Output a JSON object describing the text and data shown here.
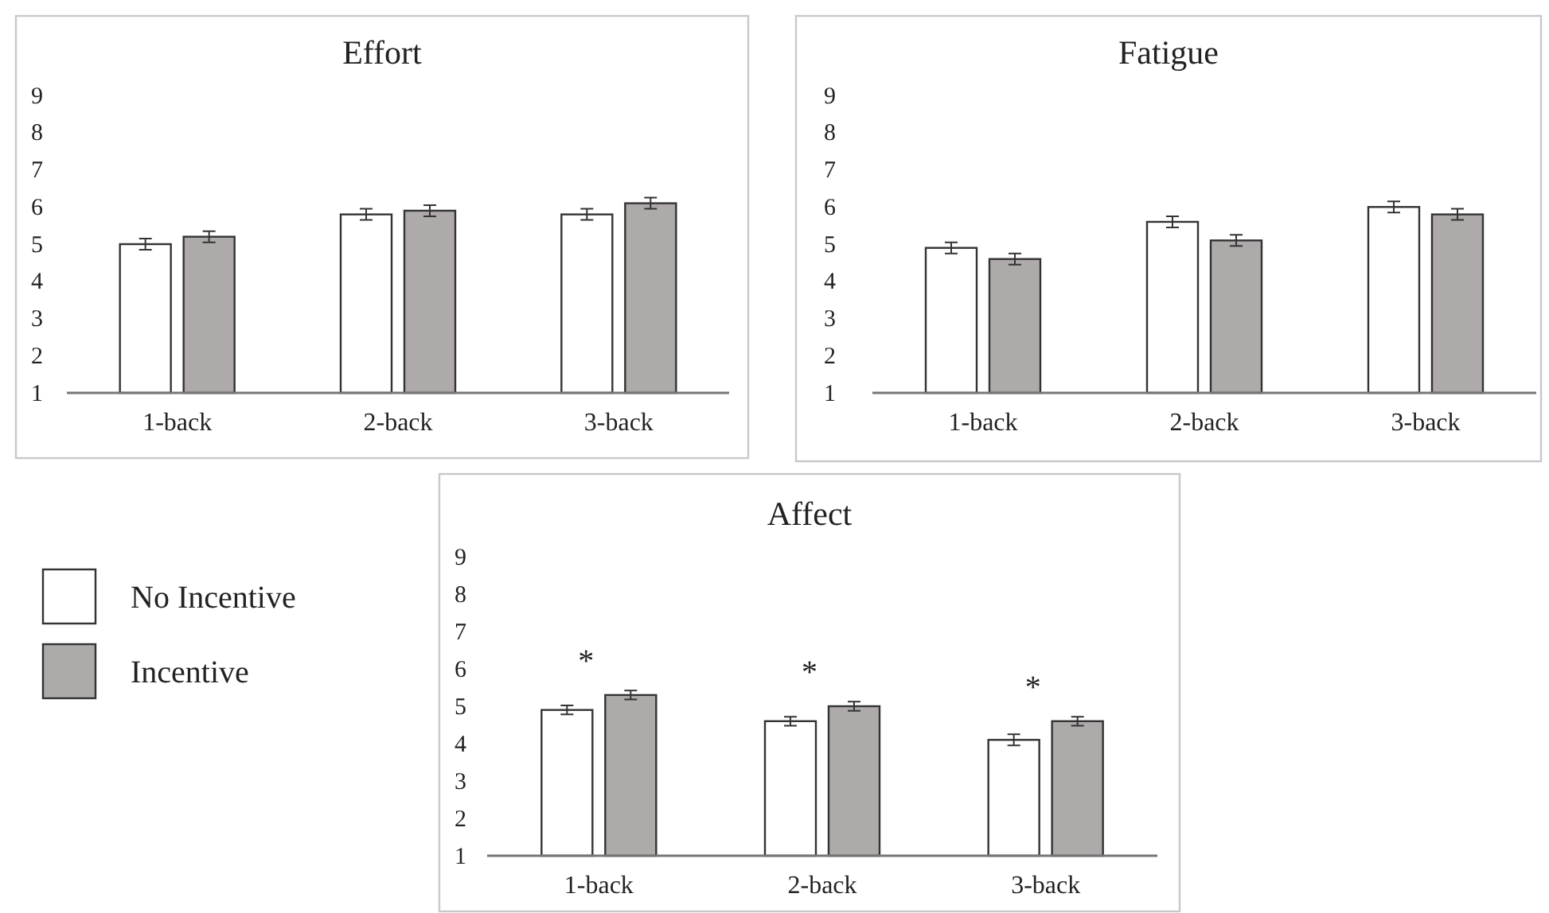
{
  "chart_data": [
    {
      "type": "bar",
      "title": "Effort",
      "categories": [
        "1-back",
        "2-back",
        "3-back"
      ],
      "ylim": [
        1,
        9
      ],
      "yticks": [
        1,
        2,
        3,
        4,
        5,
        6,
        7,
        8,
        9
      ],
      "series": [
        {
          "color": "#ffffff",
          "values": [
            5.0,
            5.8,
            5.8
          ],
          "errors": [
            0.15,
            0.15,
            0.15
          ]
        },
        {
          "color": "#aeaaaa",
          "values": [
            5.2,
            5.9,
            6.1
          ],
          "errors": [
            0.15,
            0.15,
            0.15
          ]
        }
      ]
    },
    {
      "type": "bar",
      "title": "Fatigue",
      "categories": [
        "1-back",
        "2-back",
        "3-back"
      ],
      "ylim": [
        1,
        9
      ],
      "yticks": [
        1,
        2,
        3,
        4,
        5,
        6,
        7,
        8,
        9
      ],
      "series": [
        {
          "color": "#ffffff",
          "values": [
            4.9,
            5.6,
            6.0
          ],
          "errors": [
            0.15,
            0.15,
            0.15
          ]
        },
        {
          "color": "#aeaaaa",
          "values": [
            4.6,
            5.1,
            5.8
          ],
          "errors": [
            0.15,
            0.15,
            0.15
          ]
        }
      ]
    },
    {
      "type": "bar",
      "title": "Affect",
      "categories": [
        "1-back",
        "2-back",
        "3-back"
      ],
      "ylim": [
        1,
        9
      ],
      "yticks": [
        1,
        2,
        3,
        4,
        5,
        6,
        7,
        8,
        9
      ],
      "legend": "left",
      "series": [
        {
          "name": "No Incentive",
          "color": "#ffffff",
          "values": [
            4.9,
            4.6,
            4.1
          ],
          "errors": [
            0.12,
            0.12,
            0.15
          ]
        },
        {
          "name": "Incentive",
          "color": "#aeaaaa",
          "values": [
            5.3,
            5.0,
            4.6
          ],
          "errors": [
            0.12,
            0.12,
            0.12
          ]
        }
      ],
      "annotations": [
        "*",
        "*",
        "*"
      ]
    }
  ]
}
